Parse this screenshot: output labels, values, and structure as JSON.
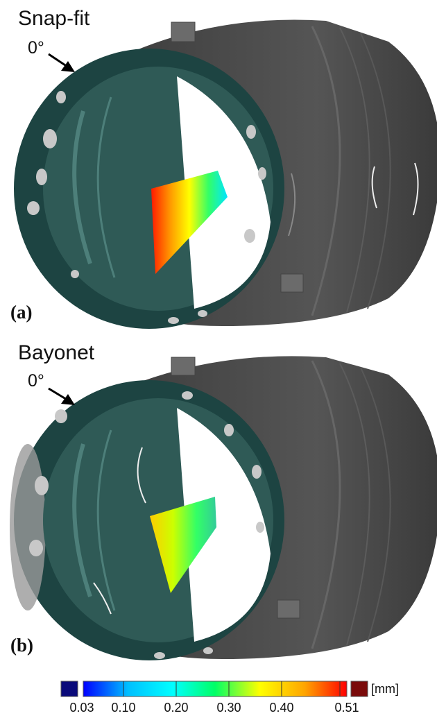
{
  "panels": [
    {
      "label": "(a)",
      "title": "Snap-fit",
      "angle": "0°"
    },
    {
      "label": "(b)",
      "title": "Bayonet",
      "angle": "0°"
    }
  ],
  "colorbar": {
    "unit": "[mm]",
    "ticks": [
      "0.03",
      "0.10",
      "0.20",
      "0.30",
      "0.40",
      "0.51"
    ],
    "below_color": "#0a0a7a",
    "above_color": "#7a0a0a",
    "gradient": [
      "#0000ff",
      "#00bfff",
      "#00ffff",
      "#00ff66",
      "#ffff00",
      "#ffa500",
      "#ff0000"
    ]
  },
  "colors": {
    "shell": "#4a4a4a",
    "rim": "#1d4442",
    "rim_speckle": "#c8c8c8",
    "interior": "#3e6f6a"
  }
}
